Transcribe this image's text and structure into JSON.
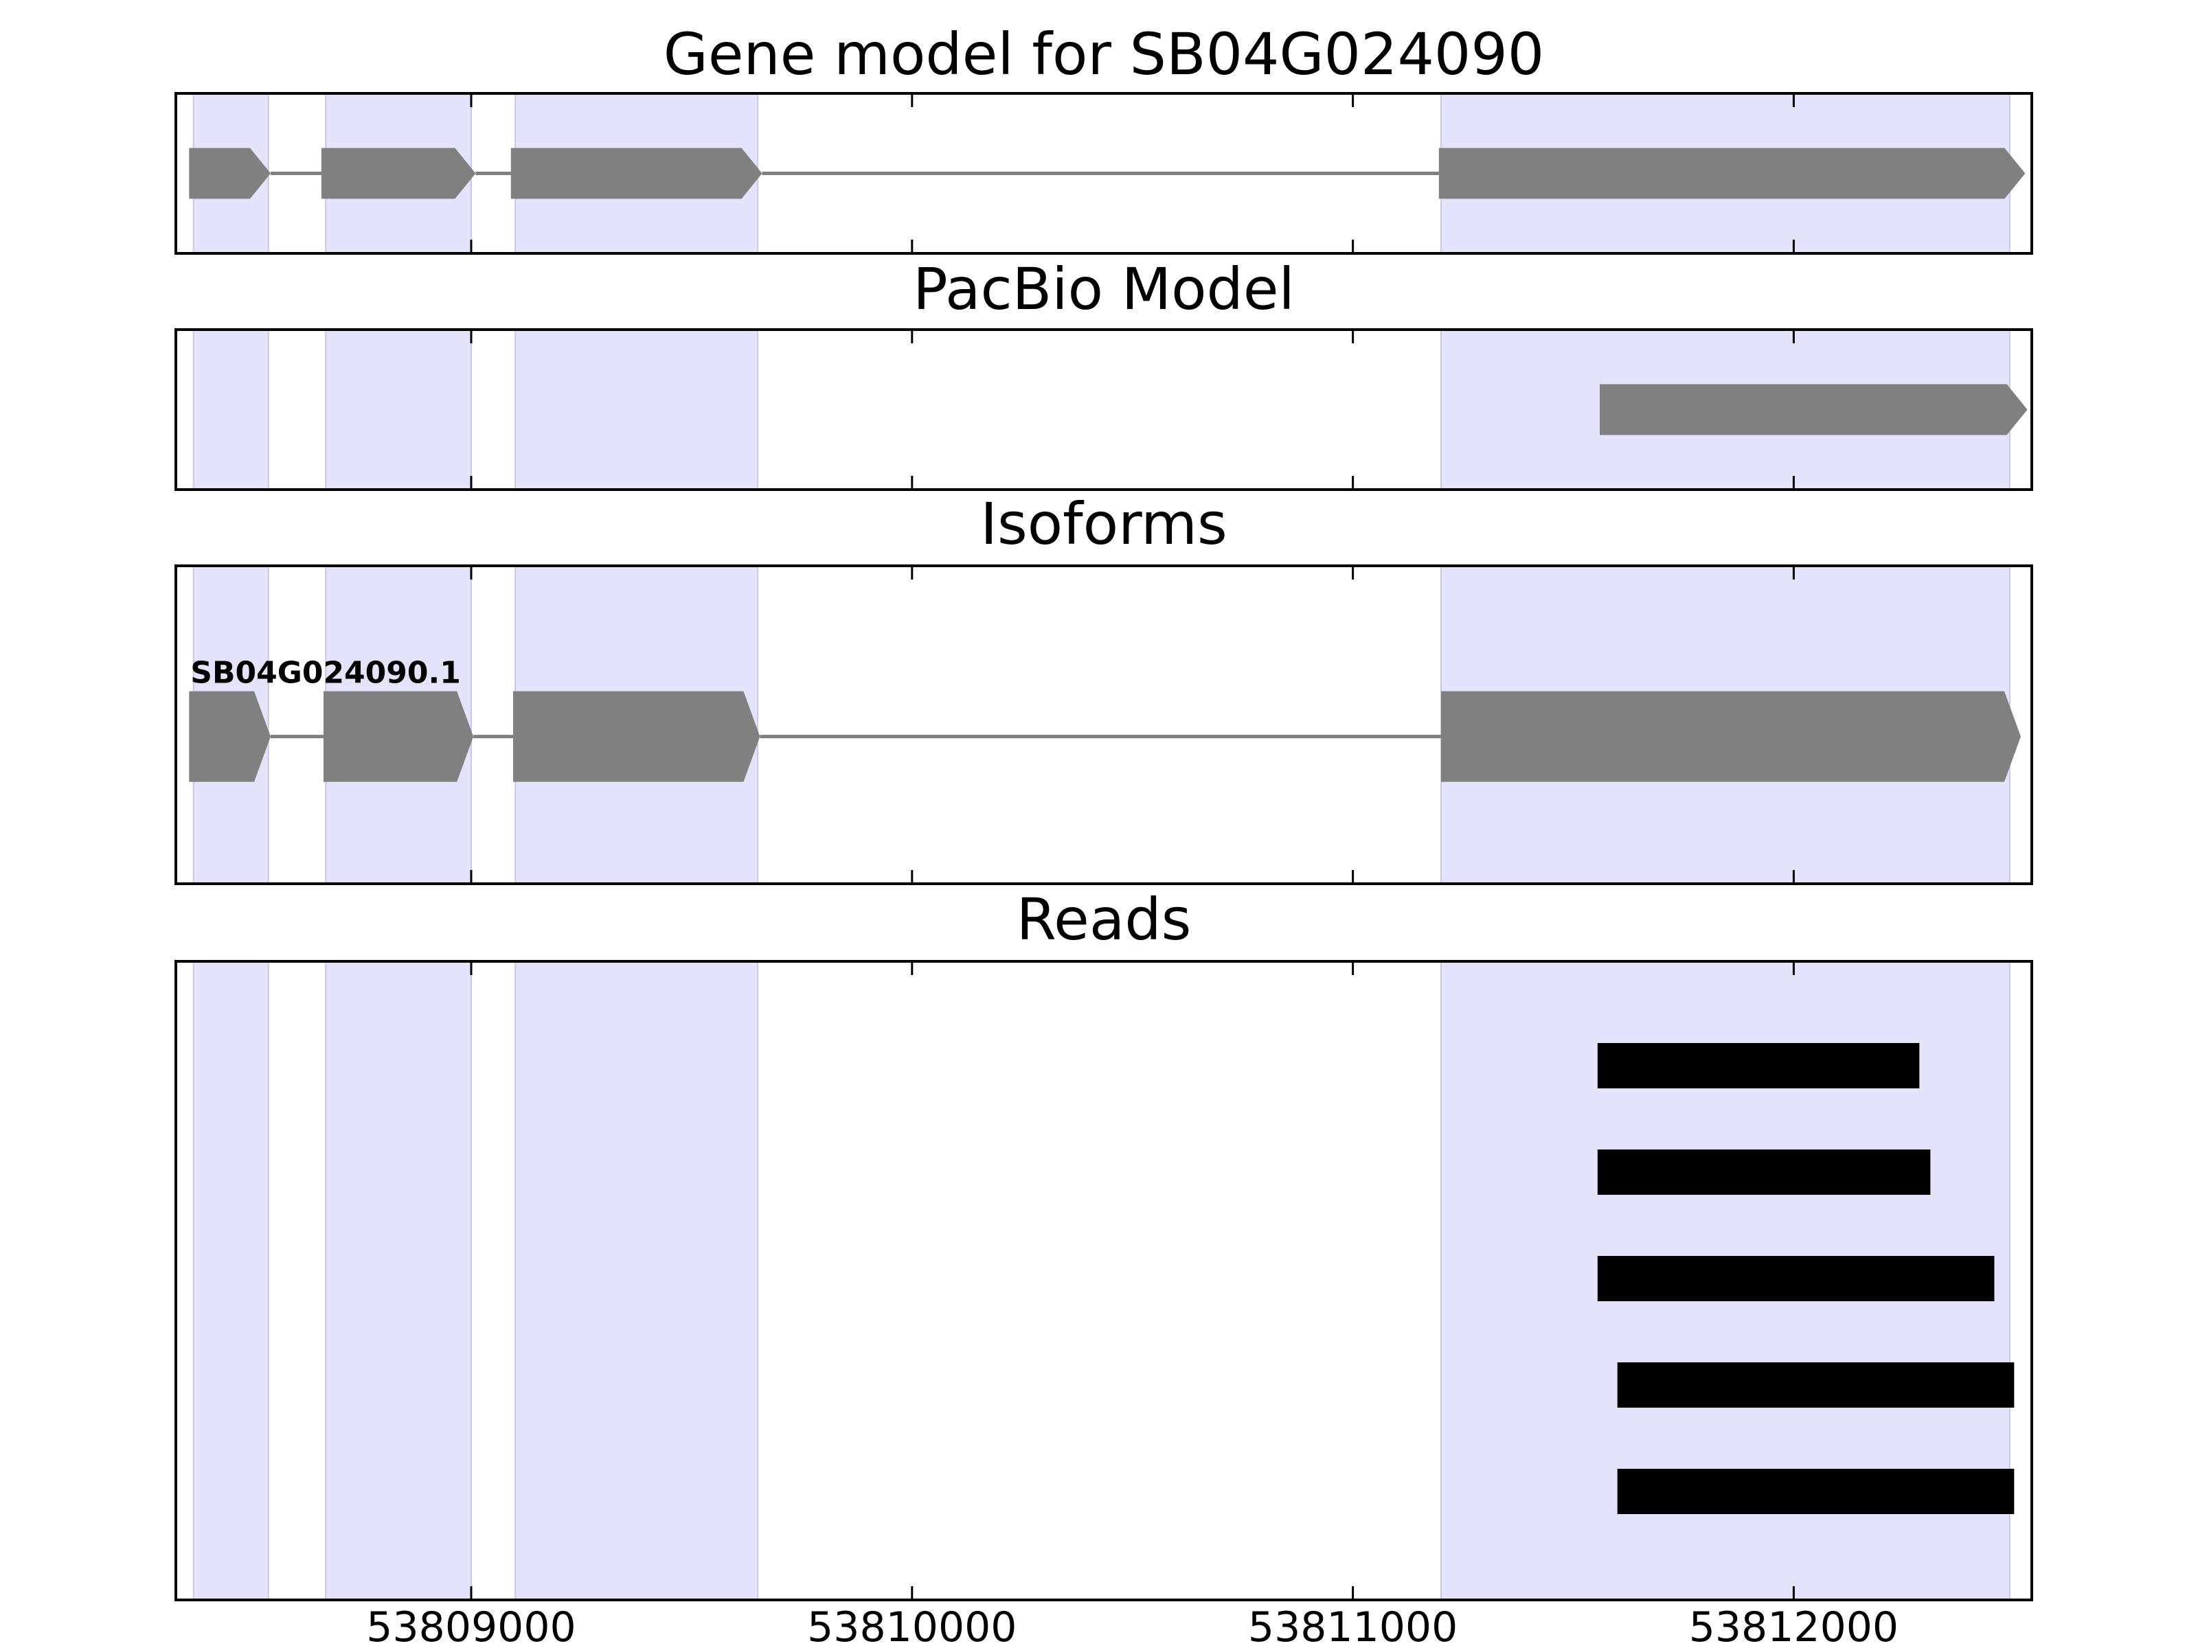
{
  "chart_data": {
    "type": "gene-track",
    "x_ticks": [
      53809000,
      53810000,
      53811000,
      53812000
    ],
    "tick_labels": [
      "53809000",
      "53810000",
      "53811000",
      "53812000"
    ],
    "xlim": [
      53808330,
      53812540
    ],
    "exons": [
      [
        53808370,
        53808540
      ],
      [
        53808670,
        53809000
      ],
      [
        53809100,
        53809650
      ],
      [
        53811200,
        53812490
      ]
    ],
    "panels": [
      {
        "id": "gene-model",
        "title": "Gene model for SB04G024090",
        "kind": "model",
        "strand": "+",
        "blocks": [
          [
            53808360,
            53808545
          ],
          [
            53808660,
            53809010
          ],
          [
            53809090,
            53809660
          ],
          [
            53811195,
            53812525
          ]
        ]
      },
      {
        "id": "pacbio-model",
        "title": "PacBio Model",
        "kind": "model",
        "strand": "+",
        "blocks": [
          [
            53811560,
            53812530
          ]
        ]
      },
      {
        "id": "isoforms",
        "title": "Isoforms",
        "kind": "isoform",
        "strand": "+",
        "label": "SB04G024090.1",
        "blocks": [
          [
            53808360,
            53808545
          ],
          [
            53808665,
            53809005
          ],
          [
            53809095,
            53809655
          ],
          [
            53811200,
            53812515
          ]
        ]
      },
      {
        "id": "reads",
        "title": "Reads",
        "kind": "reads",
        "reads": [
          [
            53811555,
            53812285
          ],
          [
            53811555,
            53812310
          ],
          [
            53811555,
            53812455
          ],
          [
            53811600,
            53812500
          ],
          [
            53811600,
            53812500
          ]
        ]
      }
    ],
    "colors": {
      "exon_band": "#e3e3fc",
      "exon_band_edge": "#c8c8ec",
      "feature": "#808080",
      "intron": "#808080",
      "read": "#000000"
    }
  }
}
